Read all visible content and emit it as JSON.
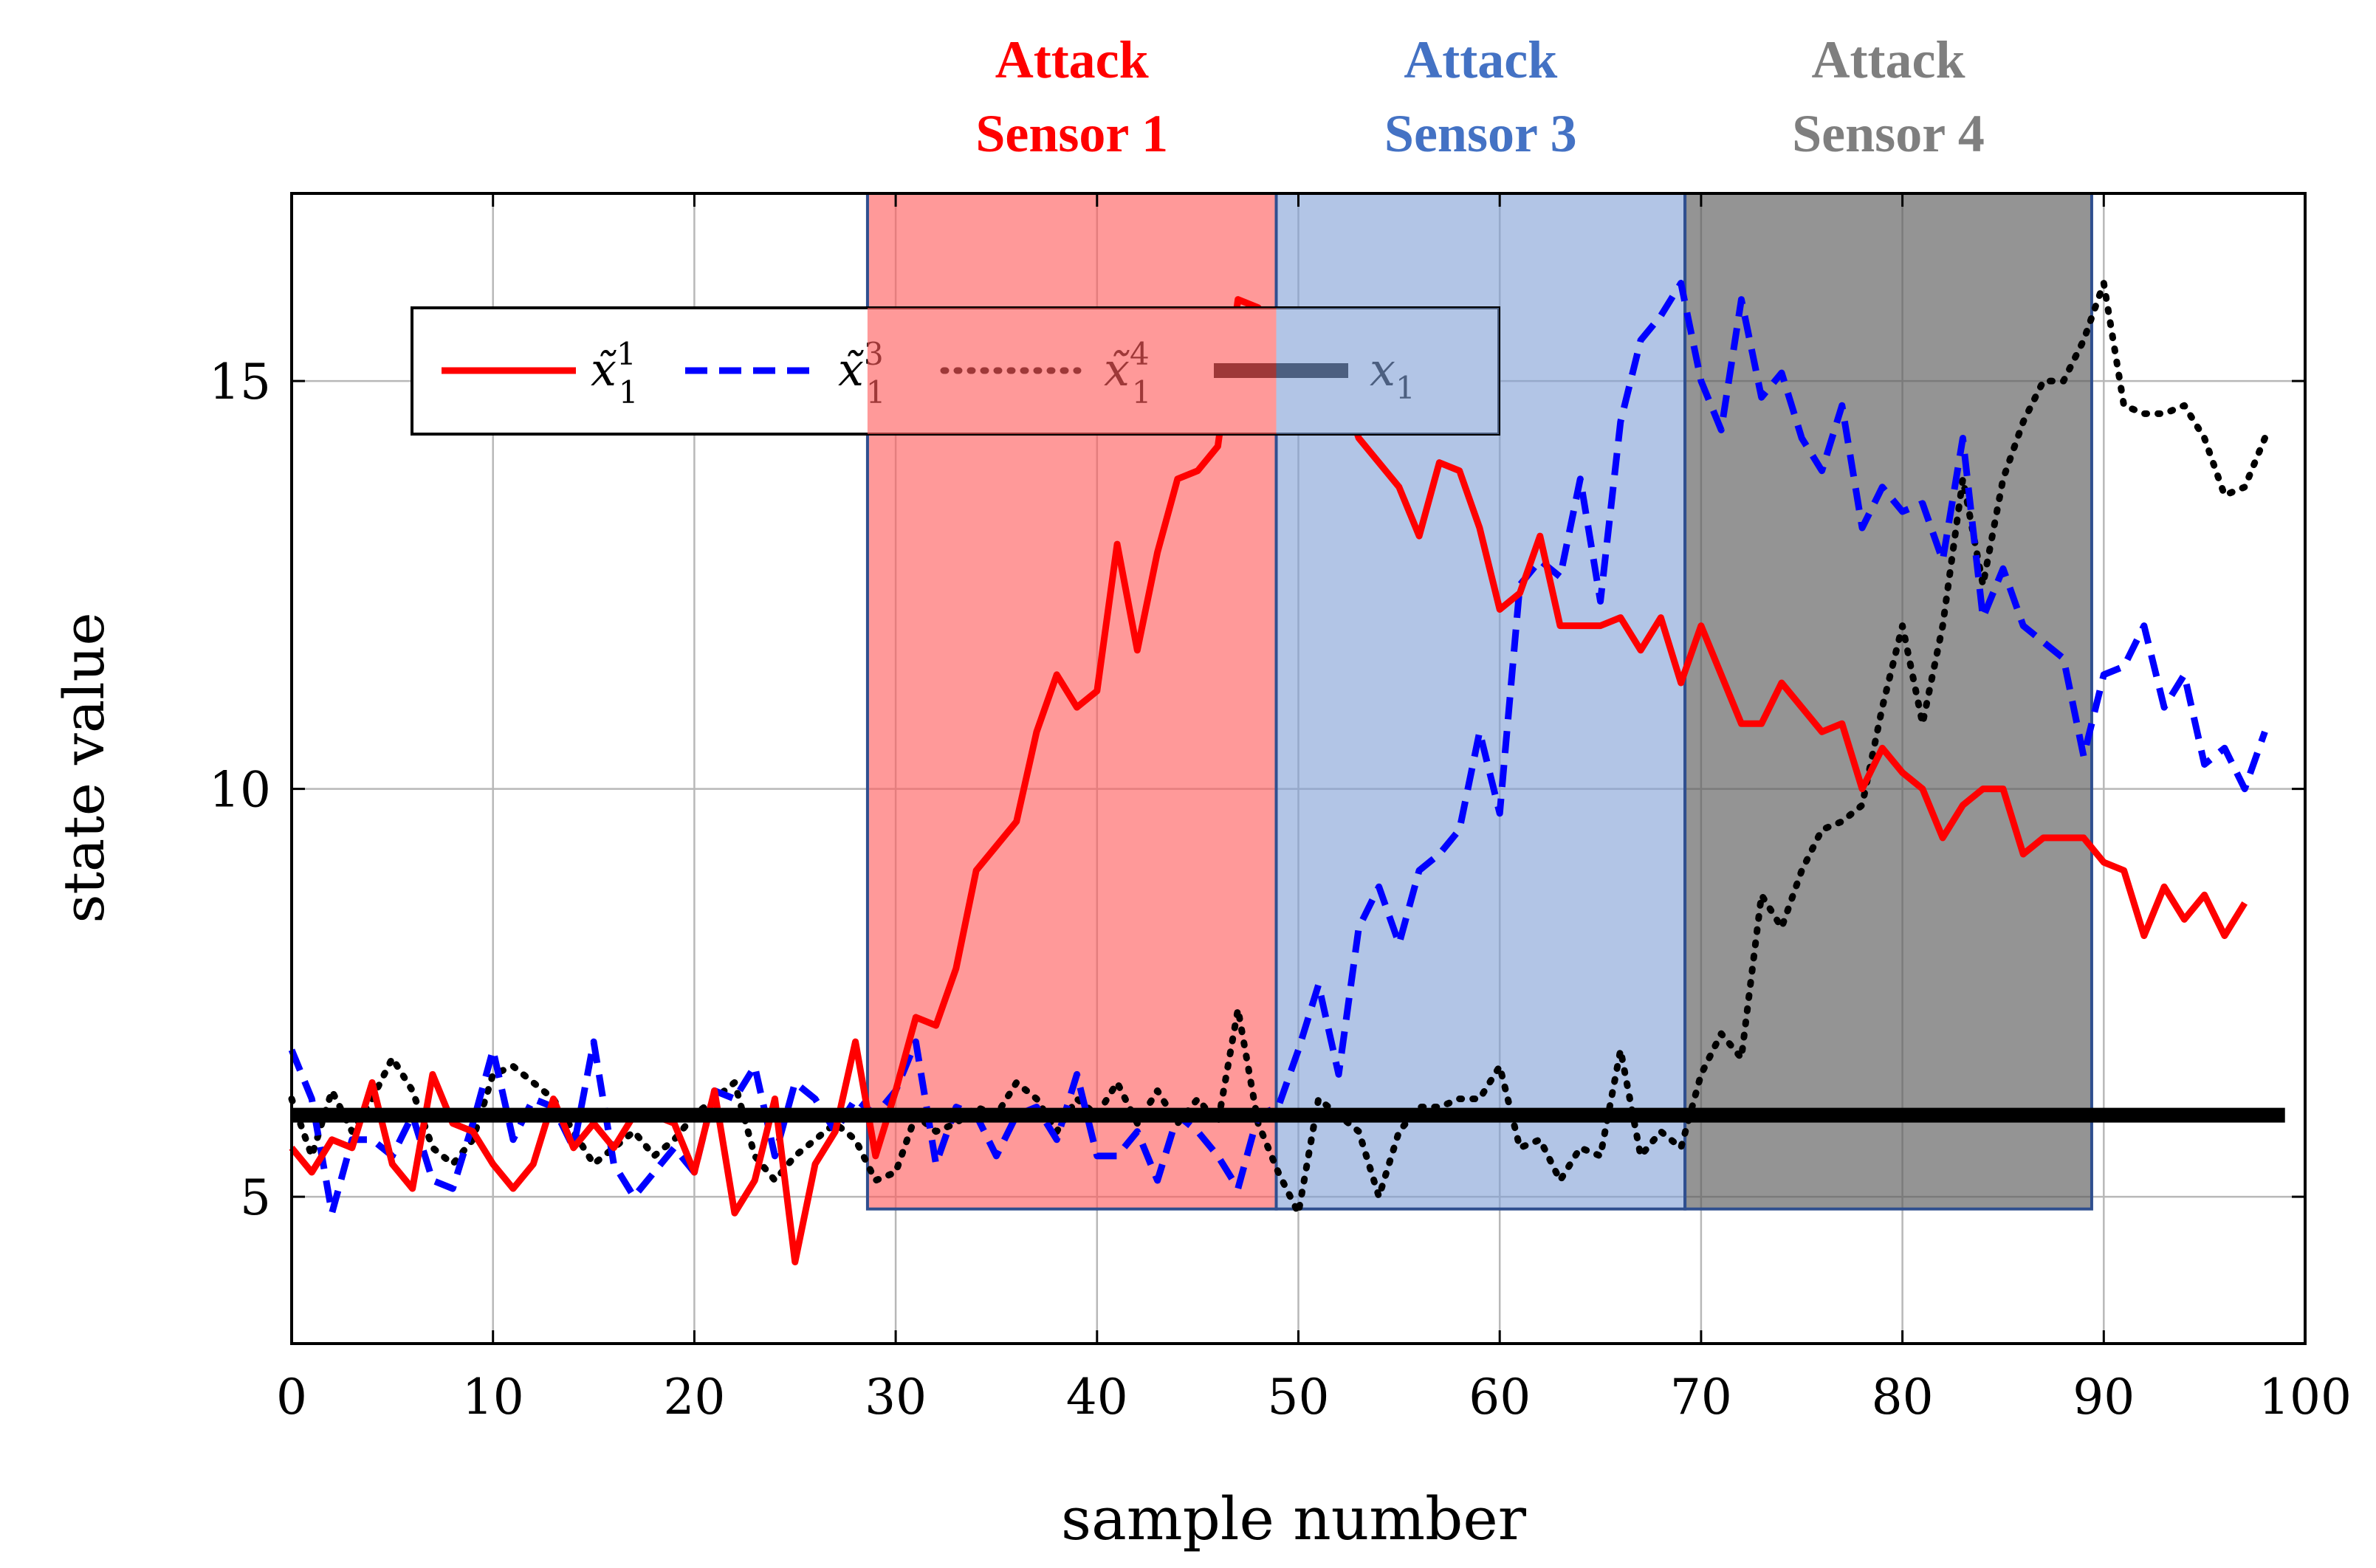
{
  "chart_data": {
    "type": "line",
    "xlabel": "sample number",
    "ylabel": "state value",
    "xlim": [
      0,
      100
    ],
    "ylim": [
      3.2,
      17.3
    ],
    "xticks": [
      0,
      10,
      20,
      30,
      40,
      50,
      60,
      70,
      80,
      90,
      100
    ],
    "yticks": [
      5,
      10,
      15
    ],
    "grid": true,
    "legend_position": "top",
    "regions": [
      {
        "label_line1": "Attack",
        "label_line2": "Sensor 1",
        "x0": 28.6,
        "x1": 48.9,
        "y0": 4.85,
        "y1": 17.3,
        "color": "#ff5a5a",
        "opacity": 0.62,
        "label_color": "#ff0000"
      },
      {
        "label_line1": "Attack",
        "label_line2": "Sensor 3",
        "x0": 48.9,
        "x1": 69.2,
        "y0": 4.85,
        "y1": 17.3,
        "color": "#7f9fd6",
        "opacity": 0.6,
        "label_color": "#4472c4"
      },
      {
        "label_line1": "Attack",
        "label_line2": "Sensor 4",
        "x0": 69.2,
        "x1": 89.4,
        "y0": 4.85,
        "y1": 17.3,
        "color": "#5a5a5a",
        "opacity": 0.65,
        "label_color": "#7f7f7f"
      }
    ],
    "series": [
      {
        "name": "x̃₁¹",
        "name_base": "x̃",
        "name_sub": "1",
        "name_sup": "1",
        "color": "#ff0000",
        "dash": "solid",
        "values": [
          5.6,
          5.3,
          5.7,
          5.6,
          6.4,
          5.4,
          5.1,
          6.5,
          5.9,
          5.8,
          5.4,
          5.1,
          5.4,
          6.2,
          5.6,
          5.9,
          5.6,
          6.0,
          6.0,
          5.9,
          5.3,
          6.3,
          4.8,
          5.2,
          6.2,
          4.2,
          5.4,
          5.8,
          6.9,
          5.5,
          6.3,
          7.2,
          7.1,
          7.8,
          9.0,
          9.3,
          9.6,
          10.7,
          11.4,
          11.0,
          11.2,
          13.0,
          11.7,
          12.9,
          13.8,
          13.9,
          14.2,
          16.0,
          15.9,
          15.6,
          15.3,
          14.9,
          15.0,
          14.3,
          14.0,
          13.7,
          13.1,
          14.0,
          13.9,
          13.2,
          12.2,
          12.4,
          13.1,
          12.0,
          12.0,
          12.0,
          12.1,
          11.7,
          12.1,
          11.3,
          12.0,
          11.4,
          10.8,
          10.8,
          11.3,
          11.0,
          10.7,
          10.8,
          10.0,
          10.5,
          10.2,
          10.0,
          9.4,
          9.8,
          10.0,
          10.0,
          9.2,
          9.4,
          9.4,
          9.4,
          9.1,
          9.0,
          8.2,
          8.8,
          8.4,
          8.7,
          8.2,
          8.6
        ]
      },
      {
        "name": "x̃₁³",
        "name_base": "x̃",
        "name_sub": "1",
        "name_sup": "3",
        "color": "#0000ff",
        "dash": "dashed",
        "values": [
          6.8,
          6.2,
          4.8,
          5.7,
          5.7,
          5.5,
          6.0,
          5.2,
          5.1,
          5.9,
          6.8,
          5.7,
          6.2,
          6.1,
          5.6,
          6.9,
          5.4,
          5.0,
          5.3,
          5.6,
          5.3,
          6.3,
          6.2,
          6.6,
          5.5,
          6.4,
          6.2,
          5.8,
          6.2,
          6.0,
          6.3,
          6.9,
          5.4,
          6.1,
          6.0,
          5.5,
          6.0,
          6.1,
          5.7,
          6.5,
          5.5,
          5.5,
          5.8,
          5.2,
          6.0,
          5.8,
          5.5,
          5.1,
          6.0,
          6.1,
          6.8,
          7.6,
          6.5,
          8.3,
          8.8,
          8.1,
          9.0,
          9.2,
          9.5,
          10.7,
          9.7,
          12.5,
          12.8,
          12.6,
          13.8,
          12.3,
          14.5,
          15.5,
          15.8,
          16.2,
          15.0,
          14.4,
          16.0,
          14.8,
          15.1,
          14.3,
          13.9,
          14.7,
          13.2,
          13.7,
          13.4,
          13.5,
          12.8,
          14.3,
          12.1,
          12.7,
          12.0,
          11.8,
          11.6,
          10.4,
          11.4,
          11.5,
          12.0,
          11.0,
          11.4,
          10.3,
          10.5,
          10.0,
          10.7
        ]
      },
      {
        "name": "x̃₁⁴",
        "name_base": "x̃",
        "name_sub": "1",
        "name_sup": "4",
        "color": "#000000",
        "dash": "dotted",
        "values": [
          6.2,
          5.5,
          6.3,
          5.8,
          6.2,
          6.7,
          6.3,
          5.6,
          5.4,
          5.7,
          6.5,
          6.6,
          6.4,
          6.2,
          5.8,
          5.4,
          5.6,
          5.8,
          5.5,
          5.7,
          6.0,
          6.2,
          6.4,
          5.5,
          5.2,
          5.5,
          5.7,
          5.9,
          5.7,
          5.2,
          5.3,
          6.0,
          5.8,
          5.9,
          6.1,
          6.0,
          6.4,
          6.2,
          5.8,
          6.2,
          6.0,
          6.4,
          5.9,
          6.3,
          5.9,
          6.2,
          5.9,
          7.3,
          5.9,
          5.3,
          4.8,
          6.2,
          6.0,
          5.8,
          5.0,
          5.8,
          6.1,
          6.1,
          6.2,
          6.2,
          6.6,
          5.6,
          5.7,
          5.2,
          5.6,
          5.5,
          6.8,
          5.5,
          5.8,
          5.6,
          6.5,
          7.0,
          6.7,
          8.7,
          8.3,
          9.0,
          9.5,
          9.6,
          9.8,
          11.0,
          12.0,
          10.8,
          12.0,
          13.8,
          12.5,
          13.8,
          14.5,
          15.0,
          15.0,
          15.5,
          16.2,
          14.7,
          14.6,
          14.6,
          14.7,
          14.3,
          13.6,
          13.7,
          14.3
        ]
      },
      {
        "name": "x₁",
        "name_base": "x",
        "name_sub": "1",
        "name_sup": "",
        "color": "#000000",
        "dash": "thick",
        "values": [
          6.0,
          6.0,
          6.0,
          6.0,
          6.0,
          6.0,
          6.0,
          6.0,
          6.0,
          6.0,
          6.0,
          6.0,
          6.0,
          6.0,
          6.0,
          6.0,
          6.0,
          6.0,
          6.0,
          6.0,
          6.0,
          6.0,
          6.0,
          6.0,
          6.0,
          6.0,
          6.0,
          6.0,
          6.0,
          6.0,
          6.0,
          6.0,
          6.0,
          6.0,
          6.0,
          6.0,
          6.0,
          6.0,
          6.0,
          6.0,
          6.0,
          6.0,
          6.0,
          6.0,
          6.0,
          6.0,
          6.0,
          6.0,
          6.0,
          6.0,
          6.0,
          6.0,
          6.0,
          6.0,
          6.0,
          6.0,
          6.0,
          6.0,
          6.0,
          6.0,
          6.0,
          6.0,
          6.0,
          6.0,
          6.0,
          6.0,
          6.0,
          6.0,
          6.0,
          6.0,
          6.0,
          6.0,
          6.0,
          6.0,
          6.0,
          6.0,
          6.0,
          6.0,
          6.0,
          6.0,
          6.0,
          6.0,
          6.0,
          6.0,
          6.0,
          6.0,
          6.0,
          6.0,
          6.0,
          6.0,
          6.0,
          6.0,
          6.0,
          6.0,
          6.0,
          6.0,
          6.0,
          6.0,
          6.0,
          6.0
        ]
      }
    ]
  }
}
